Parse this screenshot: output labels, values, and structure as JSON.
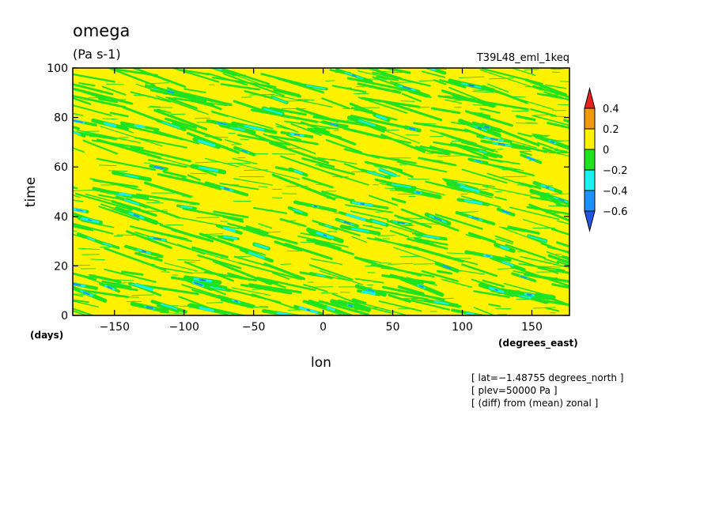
{
  "chart_data": {
    "type": "heatmap",
    "title": "omega",
    "units": "(Pa s-1)",
    "run_name": "T39L48_eml_1keq",
    "xlabel": "lon",
    "xunit": "(degrees_east)",
    "ylabel": "time",
    "yunit": "(days)",
    "xlim": [
      -180,
      177
    ],
    "ylim": [
      0,
      100
    ],
    "xticks": [
      -150,
      -100,
      -50,
      0,
      50,
      100,
      150
    ],
    "yticks": [
      0,
      20,
      40,
      60,
      80,
      100
    ],
    "xtick_labels": [
      "−150",
      "−100",
      "−50",
      "0",
      "50",
      "100",
      "150"
    ],
    "ytick_labels": [
      "0",
      "20",
      "40",
      "60",
      "80",
      "100"
    ],
    "colorbar": {
      "labels": [
        "0.4",
        "0.2",
        "0",
        "−0.2",
        "−0.4",
        "−0.6"
      ],
      "bins": [
        {
          "range": [
            0.4,
            null
          ],
          "color": "#e8201e"
        },
        {
          "range": [
            0.2,
            0.4
          ],
          "color": "#f29a0e"
        },
        {
          "range": [
            0,
            0.2
          ],
          "color": "#fff200"
        },
        {
          "range": [
            -0.2,
            0
          ],
          "color": "#1ee31e"
        },
        {
          "range": [
            -0.4,
            -0.2
          ],
          "color": "#19f0f0"
        },
        {
          "range": [
            -0.6,
            -0.4
          ],
          "color": "#1d90ff"
        },
        {
          "range": [
            null,
            -0.6
          ],
          "color": "#2255e6"
        }
      ]
    },
    "annotations": [
      "[ lat=−1.48755 degrees_north ]",
      "[ plev=50000 Pa ]",
      "[ (diff) from (mean) zonal ]"
    ],
    "field_description": "Dense pattern of thin westward-tilting streaks of negative omega (green/cyan/blue) on a mostly 0 to 0.2 (yellow) background; streaks drift eastward (toward larger lon) with increasing time.",
    "background_color": "#fff200"
  }
}
